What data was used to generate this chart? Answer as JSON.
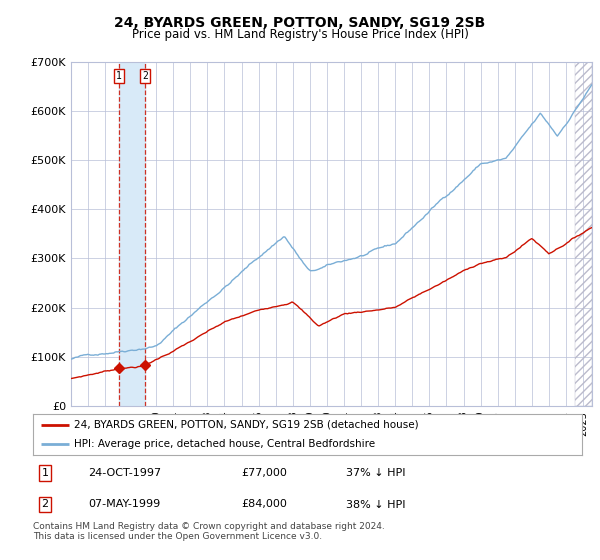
{
  "title": "24, BYARDS GREEN, POTTON, SANDY, SG19 2SB",
  "subtitle": "Price paid vs. HM Land Registry's House Price Index (HPI)",
  "footer": "Contains HM Land Registry data © Crown copyright and database right 2024.\nThis data is licensed under the Open Government Licence v3.0.",
  "legend_line1": "24, BYARDS GREEN, POTTON, SANDY, SG19 2SB (detached house)",
  "legend_line2": "HPI: Average price, detached house, Central Bedfordshire",
  "transaction1_label": "1",
  "transaction1_date": "24-OCT-1997",
  "transaction1_price": "£77,000",
  "transaction1_hpi": "37% ↓ HPI",
  "transaction2_label": "2",
  "transaction2_date": "07-MAY-1999",
  "transaction2_price": "£84,000",
  "transaction2_hpi": "38% ↓ HPI",
  "hpi_color": "#7aaed6",
  "price_color": "#cc1100",
  "marker_color": "#cc1100",
  "vline_color": "#cc1100",
  "highlight_color": "#d8eaf8",
  "background_color": "#ffffff",
  "grid_color": "#b8bfd8",
  "ylim": [
    0,
    700000
  ],
  "yticks": [
    0,
    100000,
    200000,
    300000,
    400000,
    500000,
    600000,
    700000
  ],
  "xlim_start": 1995.0,
  "xlim_end": 2025.5,
  "transaction1_x": 1997.81,
  "transaction1_y": 77000,
  "transaction2_x": 1999.35,
  "transaction2_y": 84000
}
